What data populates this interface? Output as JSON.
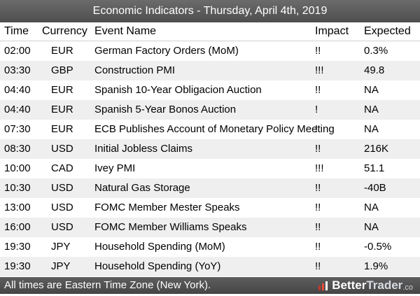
{
  "title": "Economic Indicators - Thursday, April 4th, 2019",
  "columns": {
    "time": "Time",
    "currency": "Currency",
    "event": "Event Name",
    "impact": "Impact",
    "expected": "Expected"
  },
  "rows": [
    {
      "time": "02:00",
      "currency": "EUR",
      "event": "German Factory Orders (MoM)",
      "impact": "!!",
      "expected": "0.3%"
    },
    {
      "time": "03:30",
      "currency": "GBP",
      "event": "Construction PMI",
      "impact": "!!!",
      "expected": "49.8"
    },
    {
      "time": "04:40",
      "currency": "EUR",
      "event": "Spanish 10-Year Obligacion Auction",
      "impact": "!!",
      "expected": "NA"
    },
    {
      "time": "04:40",
      "currency": "EUR",
      "event": "Spanish 5-Year Bonos Auction",
      "impact": "!",
      "expected": "NA"
    },
    {
      "time": "07:30",
      "currency": "EUR",
      "event": "ECB Publishes Account of Monetary Policy Meeting",
      "impact": "!",
      "expected": "NA"
    },
    {
      "time": "08:30",
      "currency": "USD",
      "event": "Initial Jobless Claims",
      "impact": "!!",
      "expected": "216K"
    },
    {
      "time": "10:00",
      "currency": "CAD",
      "event": "Ivey PMI",
      "impact": "!!!",
      "expected": "51.1"
    },
    {
      "time": "10:30",
      "currency": "USD",
      "event": "Natural Gas Storage",
      "impact": "!!",
      "expected": "-40B"
    },
    {
      "time": "13:00",
      "currency": "USD",
      "event": "FOMC Member Mester Speaks",
      "impact": "!!",
      "expected": "NA"
    },
    {
      "time": "16:00",
      "currency": "USD",
      "event": "FOMC Member Williams Speaks",
      "impact": "!!",
      "expected": "NA"
    },
    {
      "time": "19:30",
      "currency": "JPY",
      "event": "Household Spending (MoM)",
      "impact": "!!",
      "expected": "-0.5%"
    },
    {
      "time": "19:30",
      "currency": "JPY",
      "event": "Household Spending (YoY)",
      "impact": "!!",
      "expected": "1.9%"
    }
  ],
  "footer": {
    "note": "All times are Eastern Time Zone (New York).",
    "brand_a": "Better",
    "brand_b": "Trader",
    "brand_c": ".co",
    "brand_icon": "better-trader-logo"
  }
}
